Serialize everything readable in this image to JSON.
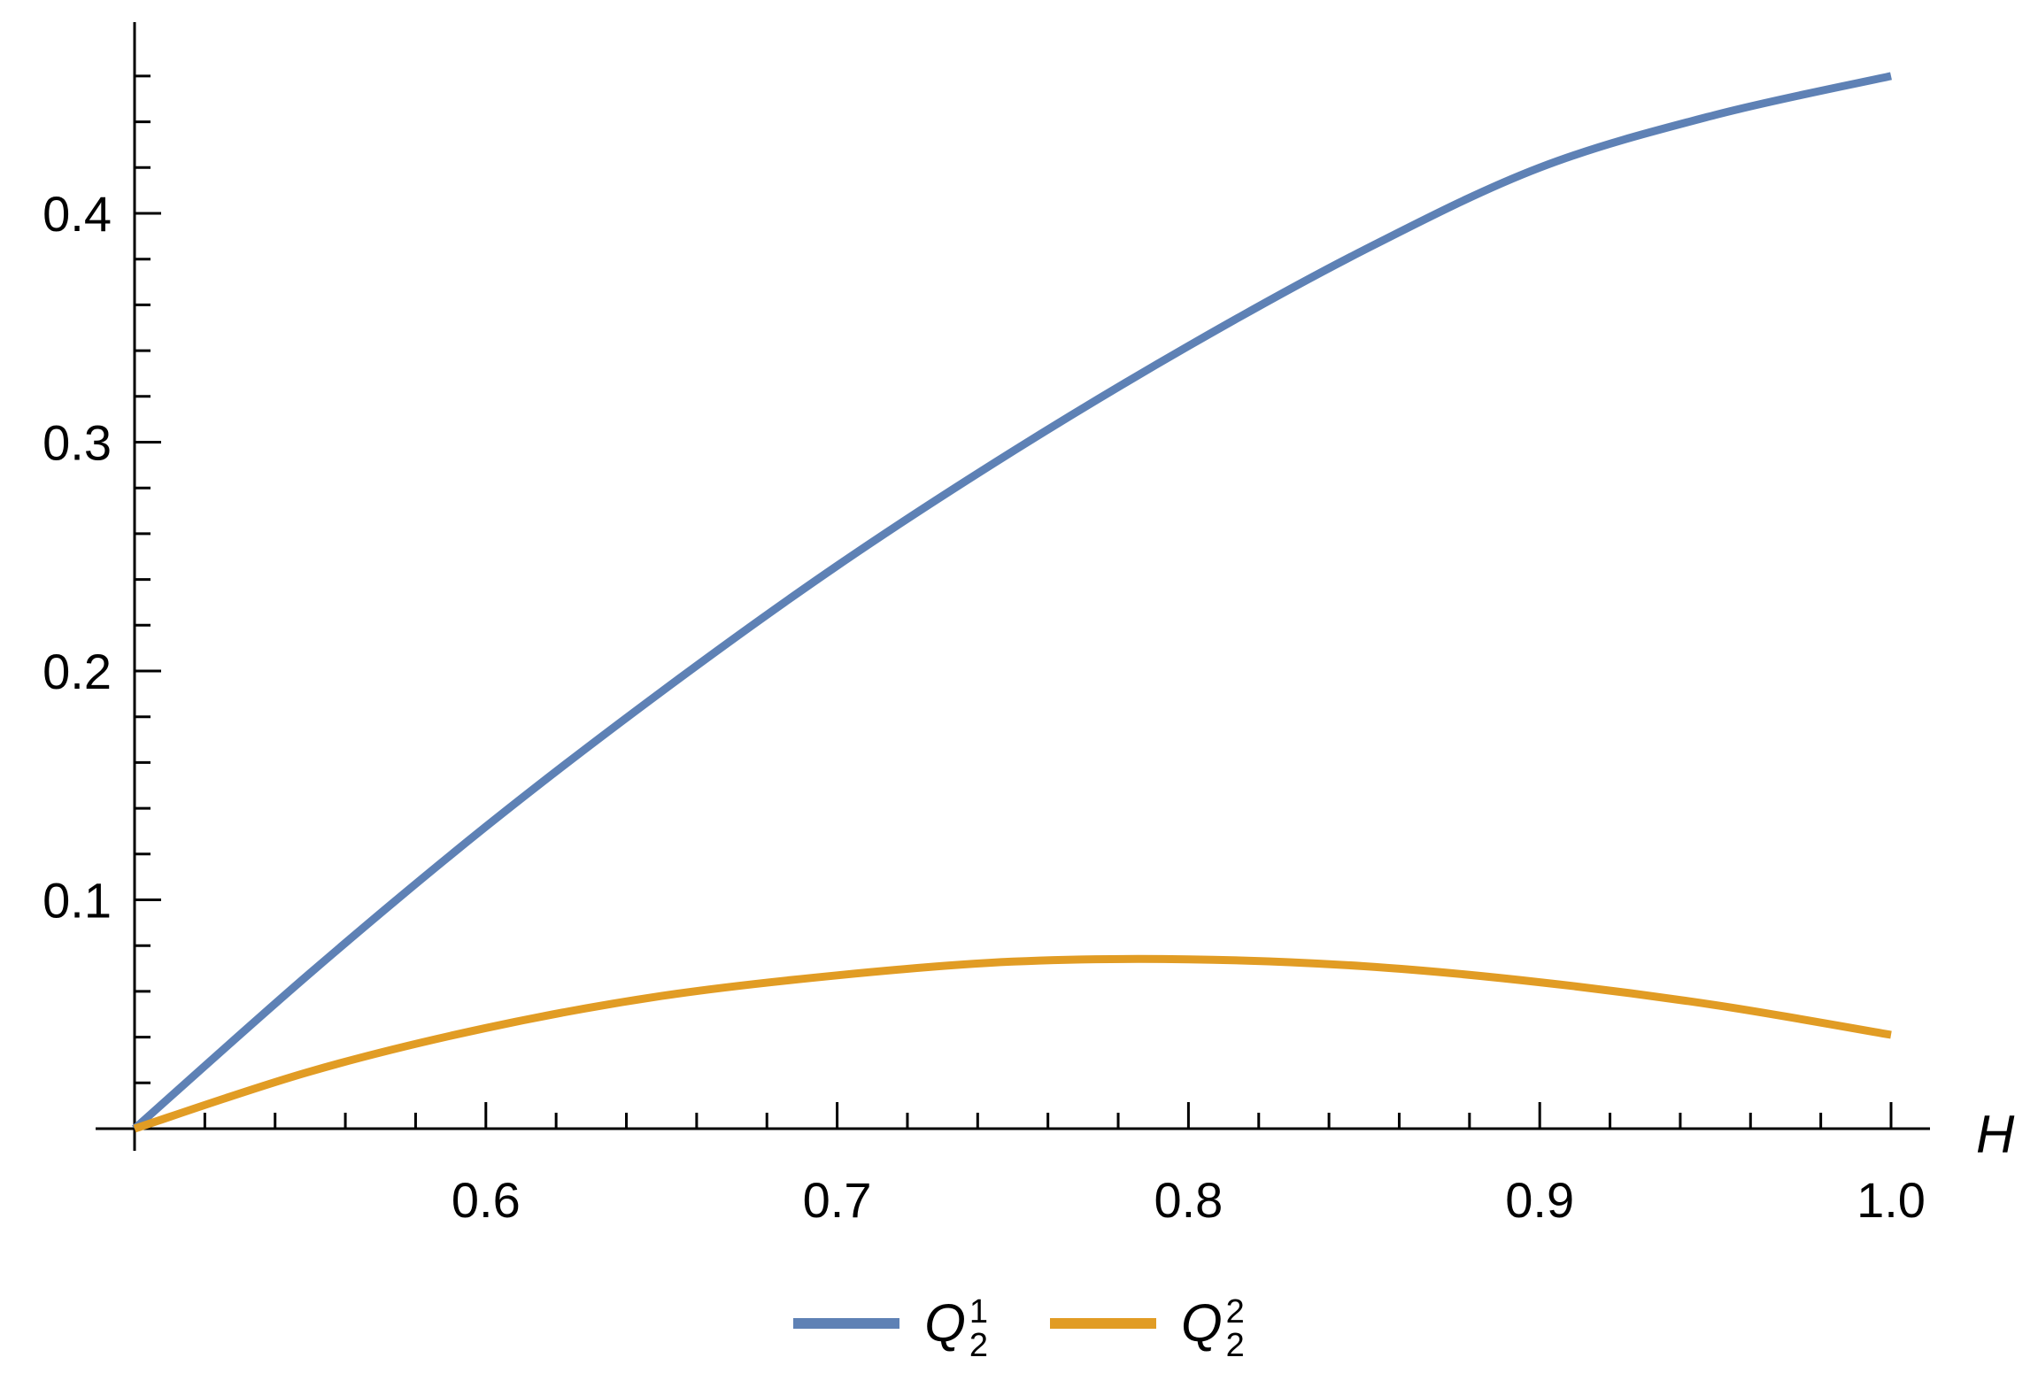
{
  "chart_data": {
    "type": "line",
    "title": "",
    "xlabel": "H",
    "ylabel": "",
    "xlim": [
      0.5,
      1.0
    ],
    "ylim": [
      0,
      0.47
    ],
    "x_ticks": [
      0.6,
      0.7,
      0.8,
      0.9,
      1.0
    ],
    "x_tick_labels": [
      "0.6",
      "0.7",
      "0.8",
      "0.9",
      "1.0"
    ],
    "y_ticks": [
      0.1,
      0.2,
      0.3,
      0.4
    ],
    "y_tick_labels": [
      "0.1",
      "0.2",
      "0.3",
      "0.4"
    ],
    "grid": false,
    "legend_position": "bottom-center",
    "x": [
      0.5,
      0.55,
      0.6,
      0.65,
      0.7,
      0.75,
      0.8,
      0.85,
      0.9,
      0.95,
      1.0
    ],
    "series": [
      {
        "name": "Q",
        "sub": "2",
        "sup": "1",
        "color": "#5E81B5",
        "values": [
          0.0,
          0.068,
          0.132,
          0.191,
          0.246,
          0.296,
          0.342,
          0.384,
          0.42,
          0.443,
          0.46
        ]
      },
      {
        "name": "Q",
        "sub": "2",
        "sup": "2",
        "color": "#E19C24",
        "values": [
          0.0,
          0.025,
          0.044,
          0.058,
          0.067,
          0.073,
          0.074,
          0.071,
          0.064,
          0.054,
          0.041
        ]
      }
    ]
  }
}
